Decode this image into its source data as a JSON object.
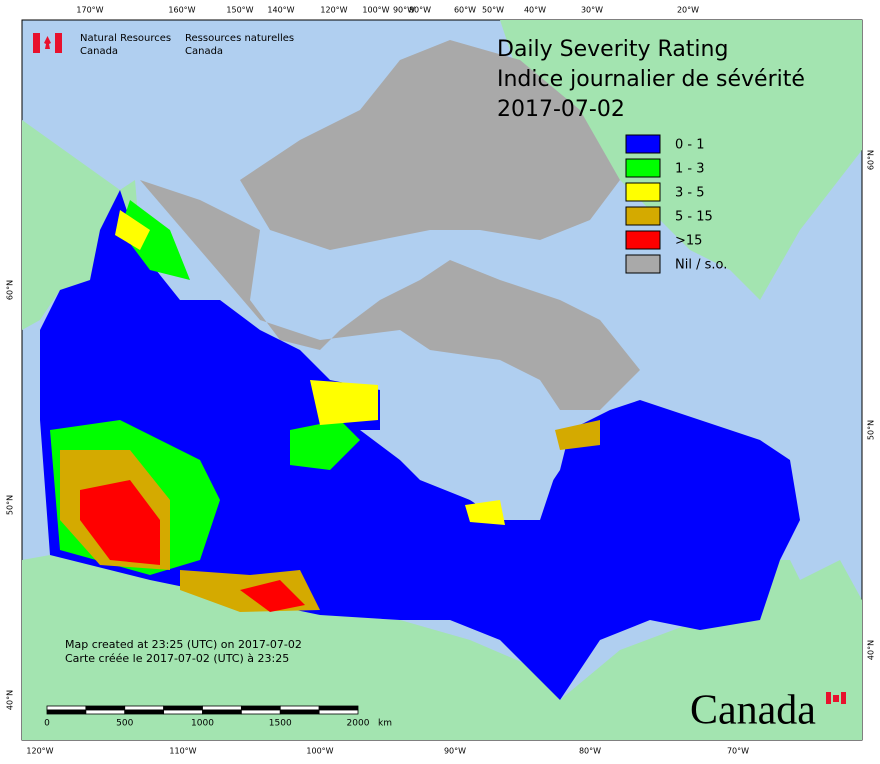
{
  "header": {
    "agency_en": [
      "Natural Resources",
      "Canada"
    ],
    "agency_fr": [
      "Ressources naturelles",
      "Canada"
    ]
  },
  "title": [
    "Daily Severity Rating",
    "Indice journalier de sévérité",
    "2017-07-02"
  ],
  "legend": [
    {
      "label": "0 - 1",
      "color": "#0000ff"
    },
    {
      "label": "1 - 3",
      "color": "#00ff00"
    },
    {
      "label": "3 - 5",
      "color": "#ffff00"
    },
    {
      "label": "5 - 15",
      "color": "#d4aa00"
    },
    {
      "label": ">15",
      "color": "#ff0000"
    },
    {
      "label": "Nil / s.o.",
      "color": "#a9a9a9"
    }
  ],
  "graticule": {
    "top": [
      "170°W",
      "160°W",
      "150°W",
      "140°W",
      "120°W",
      "100°W",
      "90°W",
      "80°W",
      "60°W",
      "50°W",
      "40°W",
      "30°W",
      "20°W"
    ],
    "bottom": [
      "120°W",
      "110°W",
      "100°W",
      "90°W",
      "80°W",
      "70°W"
    ],
    "left": [
      "60°N",
      "50°N",
      "40°N"
    ],
    "right": [
      "60°N",
      "50°N",
      "40°N"
    ]
  },
  "notes": [
    "Map created at 23:25 (UTC) on 2017-07-02",
    "Carte créée le 2017-07-02 (UTC) à 23:25"
  ],
  "scale_bar": {
    "ticks": [
      "0",
      "500",
      "1000",
      "1500",
      "2000"
    ],
    "unit": "km"
  },
  "wordmark": "Canada"
}
